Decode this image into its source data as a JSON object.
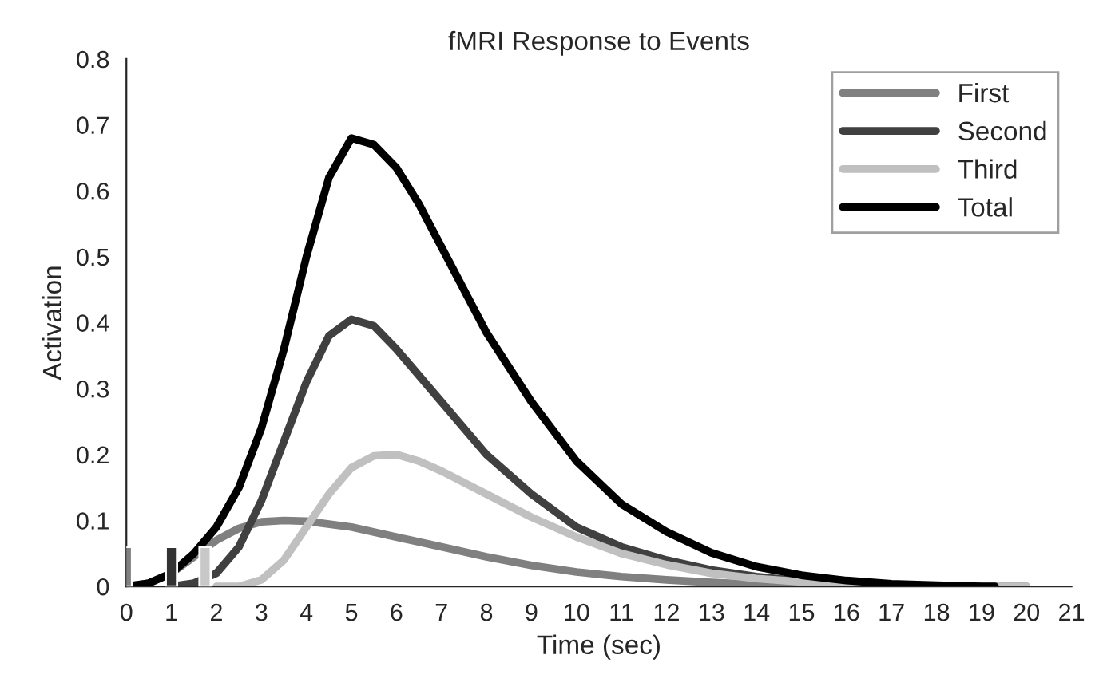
{
  "chart_data": {
    "type": "line",
    "title": "fMRI Response to Events",
    "xlabel": "Time (sec)",
    "ylabel": "Activation",
    "xlim": [
      0,
      21
    ],
    "xticks": [
      0,
      1,
      2,
      3,
      4,
      5,
      6,
      7,
      8,
      9,
      10,
      11,
      12,
      13,
      14,
      15,
      16,
      17,
      18,
      19,
      20,
      21
    ],
    "ylim": [
      0,
      0.8
    ],
    "yticks": [
      0,
      0.1,
      0.2,
      0.3,
      0.4,
      0.5,
      0.6,
      0.7,
      0.8
    ],
    "grid": false,
    "legend": "top right",
    "marker": "none",
    "line_style": "solid",
    "series": [
      {
        "type": "bar",
        "x": [
          0,
          1,
          1.75
        ],
        "values": [
          0.06,
          0.06,
          0.06
        ],
        "colors": [
          "#808080",
          "#333333",
          "#c8c8c8"
        ]
      },
      {
        "name": "First",
        "color": "#808080",
        "x": [
          0,
          0.5,
          1,
          1.5,
          2,
          2.5,
          3,
          3.5,
          4,
          5,
          6,
          7,
          8,
          9,
          10,
          11,
          12,
          13,
          14,
          15,
          16,
          17,
          18,
          19,
          20
        ],
        "values": [
          0,
          0.005,
          0.02,
          0.045,
          0.07,
          0.088,
          0.098,
          0.1,
          0.099,
          0.09,
          0.075,
          0.06,
          0.045,
          0.032,
          0.022,
          0.015,
          0.01,
          0.006,
          0.003,
          0.002,
          0.001,
          0,
          0,
          0,
          0
        ]
      },
      {
        "name": "Second",
        "color": "#404040",
        "x": [
          1,
          1.5,
          2,
          2.5,
          3,
          3.5,
          4,
          4.5,
          5,
          5.5,
          6,
          7,
          8,
          9,
          10,
          11,
          12,
          13,
          14,
          15,
          16,
          17,
          18,
          19
        ],
        "values": [
          0,
          0.005,
          0.02,
          0.06,
          0.13,
          0.22,
          0.31,
          0.38,
          0.405,
          0.395,
          0.36,
          0.28,
          0.2,
          0.14,
          0.09,
          0.06,
          0.04,
          0.025,
          0.015,
          0.008,
          0.004,
          0.002,
          0.001,
          0
        ]
      },
      {
        "name": "Third",
        "color": "#c0c0c0",
        "x": [
          2,
          2.5,
          3,
          3.5,
          4,
          4.5,
          5,
          5.5,
          6,
          6.5,
          7,
          8,
          9,
          10,
          11,
          12,
          13,
          14,
          15,
          16,
          17,
          18,
          19,
          20
        ],
        "values": [
          0,
          0,
          0.01,
          0.04,
          0.09,
          0.14,
          0.18,
          0.198,
          0.2,
          0.19,
          0.175,
          0.14,
          0.105,
          0.075,
          0.05,
          0.033,
          0.02,
          0.012,
          0.007,
          0.004,
          0.002,
          0.001,
          0,
          0
        ]
      },
      {
        "name": "Total",
        "color": "#000000",
        "x": [
          0,
          0.5,
          1,
          1.5,
          2,
          2.5,
          3,
          3.5,
          4,
          4.5,
          5,
          5.5,
          6,
          6.5,
          7,
          8,
          9,
          10,
          11,
          12,
          13,
          14,
          15,
          16,
          17,
          18,
          19,
          19.3
        ],
        "values": [
          0,
          0.005,
          0.02,
          0.05,
          0.09,
          0.15,
          0.24,
          0.36,
          0.5,
          0.62,
          0.68,
          0.67,
          0.635,
          0.58,
          0.515,
          0.385,
          0.28,
          0.19,
          0.125,
          0.083,
          0.051,
          0.03,
          0.017,
          0.009,
          0.004,
          0.002,
          0,
          0
        ]
      }
    ]
  }
}
